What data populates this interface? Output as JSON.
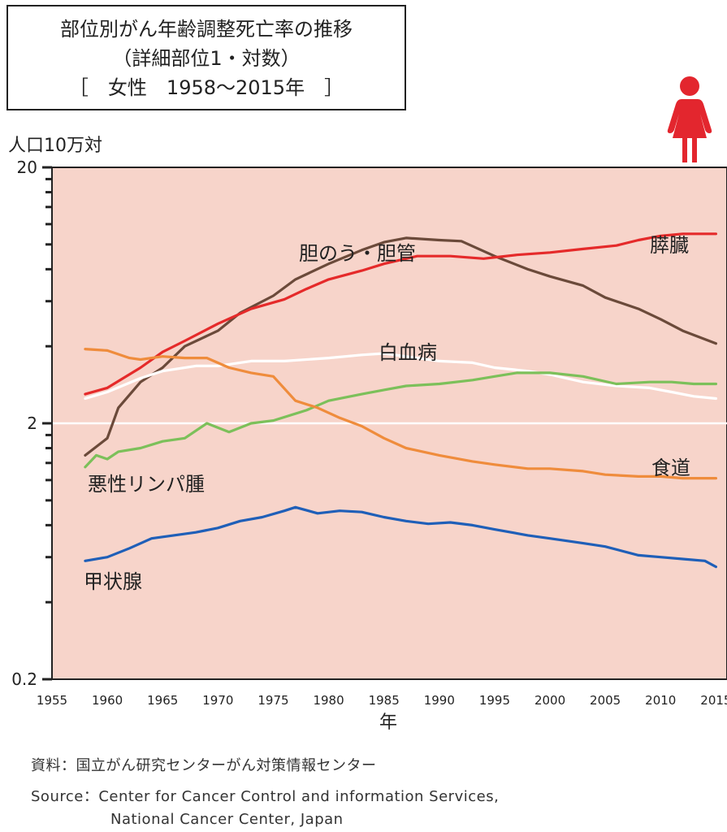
{
  "header": {
    "title_line1": "部位別がん年齢調整死亡率の推移",
    "title_line2": "（詳細部位1・対数）",
    "title_line3": "［　女性　1958〜2015年　］"
  },
  "colors": {
    "plot_background": "#f7d4ca",
    "female_icon": "#e3262e"
  },
  "icons": {
    "female_figure": "female-figure-icon"
  },
  "footer": {
    "source_jp": "資料：国立がん研究センターがん対策情報センター",
    "source_en_1": "Source：Center for Cancer Control and information Services,",
    "source_en_2": "National Cancer Center, Japan"
  },
  "chart_data": {
    "type": "line",
    "ylabel": "人口10万対",
    "xlabel": "年",
    "xlim": [
      1955,
      2016
    ],
    "ylim": [
      0.2,
      20
    ],
    "yscale": "log",
    "y_tick_labels": [
      "20",
      "2",
      "0.2"
    ],
    "x_tick_labels": [
      "1955",
      "1960",
      "1965",
      "1970",
      "1975",
      "1980",
      "1985",
      "1990",
      "1995",
      "2000",
      "2005",
      "2010",
      "2015"
    ],
    "reference_line": {
      "y": 2,
      "color": "#ffffff"
    },
    "series": [
      {
        "name": "胆のう・胆管",
        "color": "#6b4a3a",
        "points": [
          [
            1958,
            1.5
          ],
          [
            1960,
            1.75
          ],
          [
            1961,
            2.3
          ],
          [
            1963,
            2.9
          ],
          [
            1965,
            3.3
          ],
          [
            1967,
            4.0
          ],
          [
            1970,
            4.6
          ],
          [
            1972,
            5.4
          ],
          [
            1975,
            6.3
          ],
          [
            1977,
            7.3
          ],
          [
            1980,
            8.4
          ],
          [
            1983,
            9.5
          ],
          [
            1985,
            10.2
          ],
          [
            1987,
            10.6
          ],
          [
            1990,
            10.4
          ],
          [
            1992,
            10.3
          ],
          [
            1995,
            9.0
          ],
          [
            1998,
            8.0
          ],
          [
            2000,
            7.5
          ],
          [
            2003,
            6.9
          ],
          [
            2005,
            6.2
          ],
          [
            2008,
            5.6
          ],
          [
            2010,
            5.1
          ],
          [
            2012,
            4.6
          ],
          [
            2015,
            4.1
          ]
        ]
      },
      {
        "name": "膵臓",
        "color": "#e52a2a",
        "points": [
          [
            1958,
            2.6
          ],
          [
            1960,
            2.75
          ],
          [
            1963,
            3.3
          ],
          [
            1965,
            3.8
          ],
          [
            1967,
            4.2
          ],
          [
            1970,
            4.9
          ],
          [
            1973,
            5.6
          ],
          [
            1976,
            6.1
          ],
          [
            1978,
            6.7
          ],
          [
            1980,
            7.3
          ],
          [
            1983,
            7.9
          ],
          [
            1985,
            8.4
          ],
          [
            1988,
            9.0
          ],
          [
            1991,
            9.0
          ],
          [
            1994,
            8.8
          ],
          [
            1997,
            9.1
          ],
          [
            2000,
            9.3
          ],
          [
            2003,
            9.6
          ],
          [
            2006,
            9.9
          ],
          [
            2008,
            10.4
          ],
          [
            2010,
            10.8
          ],
          [
            2012,
            11.0
          ],
          [
            2015,
            11.0
          ]
        ]
      },
      {
        "name": "白血病",
        "color": "#ffffff",
        "points": [
          [
            1958,
            2.5
          ],
          [
            1960,
            2.65
          ],
          [
            1963,
            3.0
          ],
          [
            1965,
            3.2
          ],
          [
            1968,
            3.35
          ],
          [
            1970,
            3.35
          ],
          [
            1973,
            3.5
          ],
          [
            1976,
            3.5
          ],
          [
            1980,
            3.6
          ],
          [
            1983,
            3.7
          ],
          [
            1985,
            3.75
          ],
          [
            1988,
            3.6
          ],
          [
            1990,
            3.5
          ],
          [
            1993,
            3.45
          ],
          [
            1995,
            3.3
          ],
          [
            1998,
            3.2
          ],
          [
            2000,
            3.1
          ],
          [
            2003,
            2.9
          ],
          [
            2006,
            2.8
          ],
          [
            2009,
            2.75
          ],
          [
            2011,
            2.65
          ],
          [
            2013,
            2.55
          ],
          [
            2015,
            2.5
          ]
        ]
      },
      {
        "name": "悪性リンパ腫",
        "color": "#7cc05a",
        "points": [
          [
            1958,
            1.35
          ],
          [
            1959,
            1.5
          ],
          [
            1960,
            1.45
          ],
          [
            1961,
            1.55
          ],
          [
            1963,
            1.6
          ],
          [
            1965,
            1.7
          ],
          [
            1967,
            1.75
          ],
          [
            1969,
            2.0
          ],
          [
            1971,
            1.85
          ],
          [
            1973,
            2.0
          ],
          [
            1975,
            2.05
          ],
          [
            1978,
            2.25
          ],
          [
            1980,
            2.45
          ],
          [
            1983,
            2.6
          ],
          [
            1985,
            2.7
          ],
          [
            1987,
            2.8
          ],
          [
            1990,
            2.85
          ],
          [
            1993,
            2.95
          ],
          [
            1995,
            3.05
          ],
          [
            1997,
            3.15
          ],
          [
            2000,
            3.15
          ],
          [
            2003,
            3.05
          ],
          [
            2006,
            2.85
          ],
          [
            2009,
            2.9
          ],
          [
            2011,
            2.9
          ],
          [
            2013,
            2.85
          ],
          [
            2015,
            2.85
          ]
        ]
      },
      {
        "name": "食道",
        "color": "#ef8c3c",
        "points": [
          [
            1958,
            3.9
          ],
          [
            1960,
            3.85
          ],
          [
            1962,
            3.6
          ],
          [
            1963,
            3.55
          ],
          [
            1965,
            3.65
          ],
          [
            1967,
            3.6
          ],
          [
            1969,
            3.6
          ],
          [
            1971,
            3.3
          ],
          [
            1973,
            3.15
          ],
          [
            1975,
            3.05
          ],
          [
            1977,
            2.45
          ],
          [
            1979,
            2.3
          ],
          [
            1981,
            2.1
          ],
          [
            1983,
            1.95
          ],
          [
            1985,
            1.75
          ],
          [
            1987,
            1.6
          ],
          [
            1990,
            1.5
          ],
          [
            1993,
            1.42
          ],
          [
            1995,
            1.38
          ],
          [
            1998,
            1.33
          ],
          [
            2000,
            1.33
          ],
          [
            2003,
            1.3
          ],
          [
            2005,
            1.26
          ],
          [
            2008,
            1.24
          ],
          [
            2010,
            1.24
          ],
          [
            2012,
            1.22
          ],
          [
            2015,
            1.22
          ]
        ]
      },
      {
        "name": "甲状腺",
        "color": "#1f5fb8",
        "points": [
          [
            1958,
            0.58
          ],
          [
            1960,
            0.6
          ],
          [
            1962,
            0.65
          ],
          [
            1964,
            0.71
          ],
          [
            1966,
            0.73
          ],
          [
            1968,
            0.75
          ],
          [
            1970,
            0.78
          ],
          [
            1972,
            0.83
          ],
          [
            1974,
            0.86
          ],
          [
            1976,
            0.91
          ],
          [
            1977,
            0.94
          ],
          [
            1979,
            0.89
          ],
          [
            1981,
            0.91
          ],
          [
            1983,
            0.9
          ],
          [
            1985,
            0.86
          ],
          [
            1987,
            0.83
          ],
          [
            1989,
            0.81
          ],
          [
            1991,
            0.82
          ],
          [
            1993,
            0.8
          ],
          [
            1995,
            0.77
          ],
          [
            1998,
            0.73
          ],
          [
            2000,
            0.71
          ],
          [
            2003,
            0.68
          ],
          [
            2005,
            0.66
          ],
          [
            2008,
            0.61
          ],
          [
            2010,
            0.6
          ],
          [
            2012,
            0.59
          ],
          [
            2014,
            0.58
          ],
          [
            2015,
            0.55
          ]
        ]
      }
    ]
  }
}
